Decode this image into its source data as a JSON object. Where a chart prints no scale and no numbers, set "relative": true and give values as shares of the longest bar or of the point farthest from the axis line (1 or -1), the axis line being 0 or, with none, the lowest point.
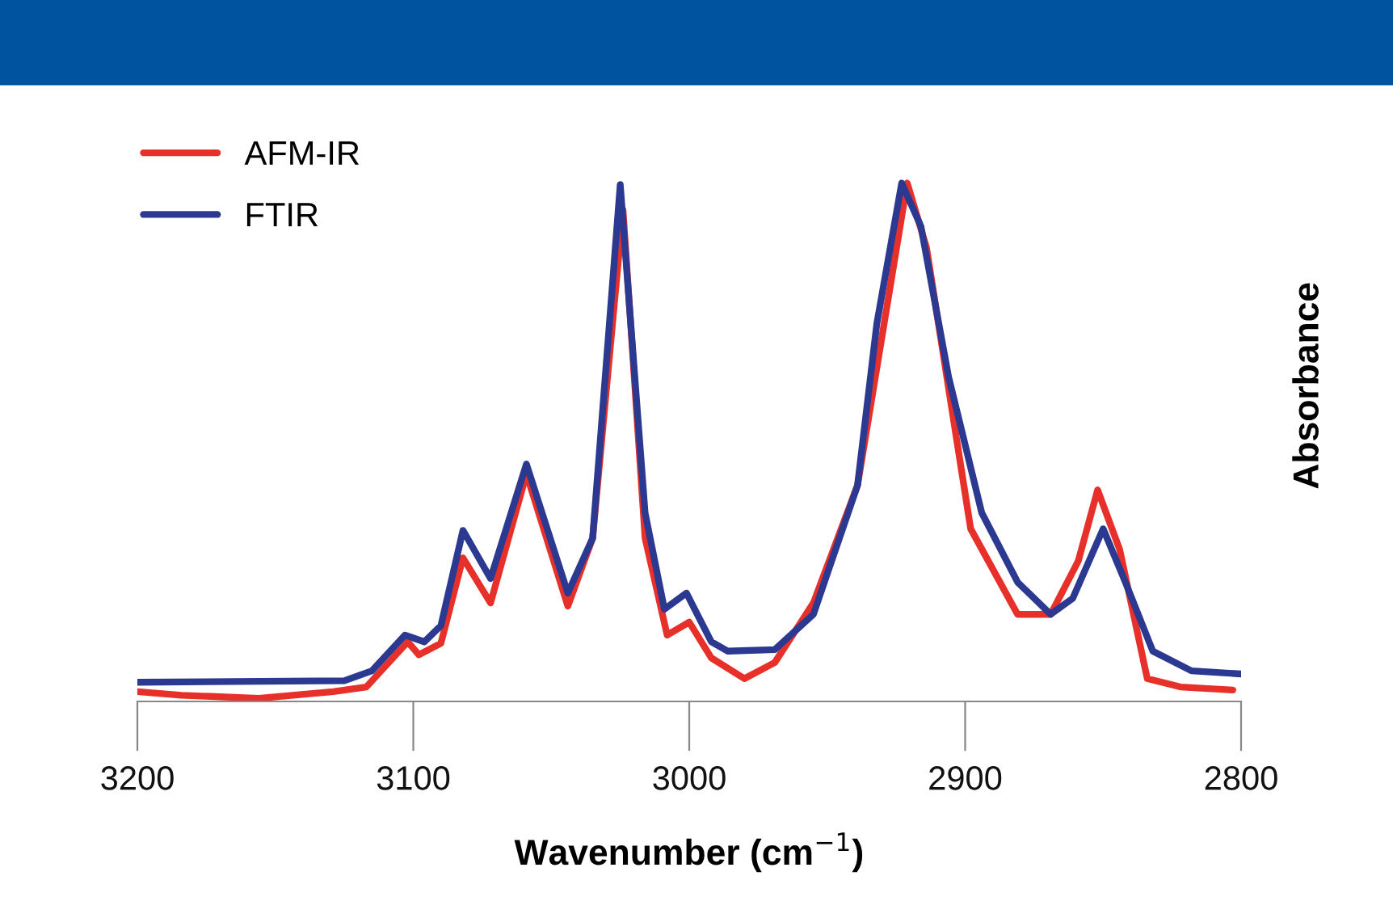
{
  "chart_data": {
    "type": "line",
    "xlabel": "Wavenumber (cm$^{−1}$)",
    "ylabel": "Absorbance",
    "relative": true,
    "xlim": [
      3200,
      2800
    ],
    "xticks": [
      3200,
      3100,
      3000,
      2900,
      2800
    ],
    "grid": false,
    "legend": "top left",
    "marker": "none",
    "line_style": "solid",
    "series": [
      {
        "name": "AFM-IR",
        "color": "#e8302a",
        "x": [
          3200,
          3184,
          3156,
          3129,
          3117,
          3102,
          3098,
          3090,
          3082,
          3072,
          3059,
          3044,
          3035,
          3024,
          3016,
          3008,
          3000,
          2992,
          2980,
          2969,
          2955,
          2939,
          2921,
          2914,
          2898,
          2881,
          2869,
          2859,
          2852,
          2844,
          2834,
          2822,
          2803
        ],
        "values": [
          0.019,
          0.012,
          0.006,
          0.019,
          0.028,
          0.115,
          0.09,
          0.112,
          0.277,
          0.19,
          0.439,
          0.184,
          0.315,
          0.948,
          0.315,
          0.128,
          0.153,
          0.084,
          0.044,
          0.075,
          0.19,
          0.417,
          1.0,
          0.875,
          0.333,
          0.168,
          0.168,
          0.271,
          0.408,
          0.293,
          0.044,
          0.028,
          0.022
        ]
      },
      {
        "name": "FTIR",
        "color": "#2b3990",
        "x": [
          3200,
          3125,
          3115,
          3103,
          3096,
          3090,
          3082,
          3072,
          3059,
          3044,
          3035,
          3025,
          3016,
          3009,
          3001,
          2992,
          2986,
          2969,
          2955,
          2939,
          2932,
          2923,
          2916,
          2906,
          2894,
          2881,
          2869,
          2861,
          2850,
          2842,
          2832,
          2818,
          2800
        ],
        "values": [
          0.037,
          0.04,
          0.059,
          0.128,
          0.115,
          0.146,
          0.33,
          0.237,
          0.458,
          0.209,
          0.315,
          0.997,
          0.364,
          0.178,
          0.209,
          0.115,
          0.097,
          0.1,
          0.168,
          0.417,
          0.729,
          1.0,
          0.916,
          0.626,
          0.364,
          0.23,
          0.168,
          0.199,
          0.333,
          0.231,
          0.097,
          0.059,
          0.053
        ]
      }
    ]
  }
}
